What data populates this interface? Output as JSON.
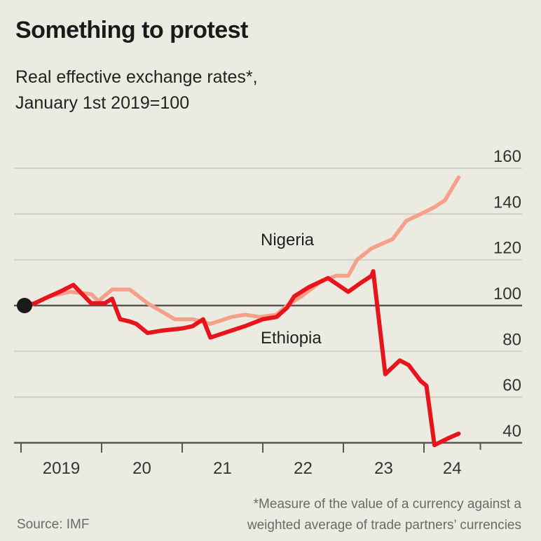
{
  "header": {
    "title": "Something to protest",
    "subtitle_line1": "Real effective exchange rates*,",
    "subtitle_line2": "January 1st 2019=100"
  },
  "footer": {
    "source": "Source: IMF",
    "footnote_line1": "*Measure of the value of a currency against a",
    "footnote_line2": "weighted average of trade partners’ currencies"
  },
  "colors": {
    "background": "#ecebe2",
    "nigeria": "#e8141b",
    "ethiopia": "#f5a08a",
    "baseline": "#555555",
    "grid": "#cfcec4",
    "marker": "#1a1a1a"
  },
  "chart_data": {
    "type": "line",
    "title": "Something to protest",
    "subtitle": "Real effective exchange rates*, January 1st 2019=100",
    "xlabel": "",
    "ylabel": "",
    "xlim": [
      2019.0,
      2024.7
    ],
    "ylim": [
      40,
      160
    ],
    "yticks": [
      40,
      60,
      80,
      100,
      120,
      140,
      160
    ],
    "ytick_labels": [
      "40",
      "60",
      "80",
      "100",
      "120",
      "140",
      "160"
    ],
    "xticks": [
      2019,
      2020,
      2021,
      2022,
      2023,
      2024
    ],
    "xtick_labels": [
      "2019",
      "20",
      "21",
      "22",
      "23",
      "24"
    ],
    "grid": true,
    "y_axis_side": "right",
    "baseline_value": 100,
    "start_marker": {
      "x": 2019.0,
      "y": 100
    },
    "series": [
      {
        "name": "Nigeria",
        "label_position": "above-line-2022",
        "x": [
          2019.05,
          2019.17,
          2019.35,
          2019.48,
          2019.65,
          2019.87,
          2020.04,
          2020.13,
          2020.23,
          2020.35,
          2020.43,
          2020.57,
          2020.74,
          2021.0,
          2021.13,
          2021.26,
          2021.35,
          2021.52,
          2021.78,
          2022.0,
          2022.17,
          2022.3,
          2022.39,
          2022.57,
          2022.81,
          2023.06,
          2023.22,
          2023.35,
          2023.37,
          2023.52,
          2023.7,
          2023.81,
          2023.96,
          2024.03,
          2024.13,
          2024.3,
          2024.43
        ],
        "values": [
          100,
          101,
          104,
          106,
          109,
          101,
          101,
          103,
          94,
          93,
          92,
          88,
          89,
          90,
          91,
          94,
          86,
          88,
          91,
          94,
          95,
          99,
          104,
          108,
          112,
          106,
          110,
          113,
          115,
          70,
          76,
          74,
          67,
          65,
          39,
          42,
          44
        ]
      },
      {
        "name": "Ethiopia",
        "label_position": "below-line-2022",
        "x": [
          2019.05,
          2019.35,
          2019.61,
          2019.87,
          2019.96,
          2020.13,
          2020.35,
          2020.57,
          2020.91,
          2021.13,
          2021.35,
          2021.61,
          2021.78,
          2021.96,
          2022.17,
          2022.3,
          2022.48,
          2022.74,
          2022.91,
          2023.06,
          2023.17,
          2023.35,
          2023.61,
          2023.78,
          2023.96,
          2024.13,
          2024.26,
          2024.43
        ],
        "values": [
          99,
          104,
          106,
          105,
          102,
          107,
          107,
          101,
          94,
          94,
          92,
          95,
          96,
          95,
          96,
          100,
          104,
          111,
          113,
          113,
          120,
          125,
          129,
          137,
          140,
          143,
          146,
          156
        ]
      }
    ]
  }
}
